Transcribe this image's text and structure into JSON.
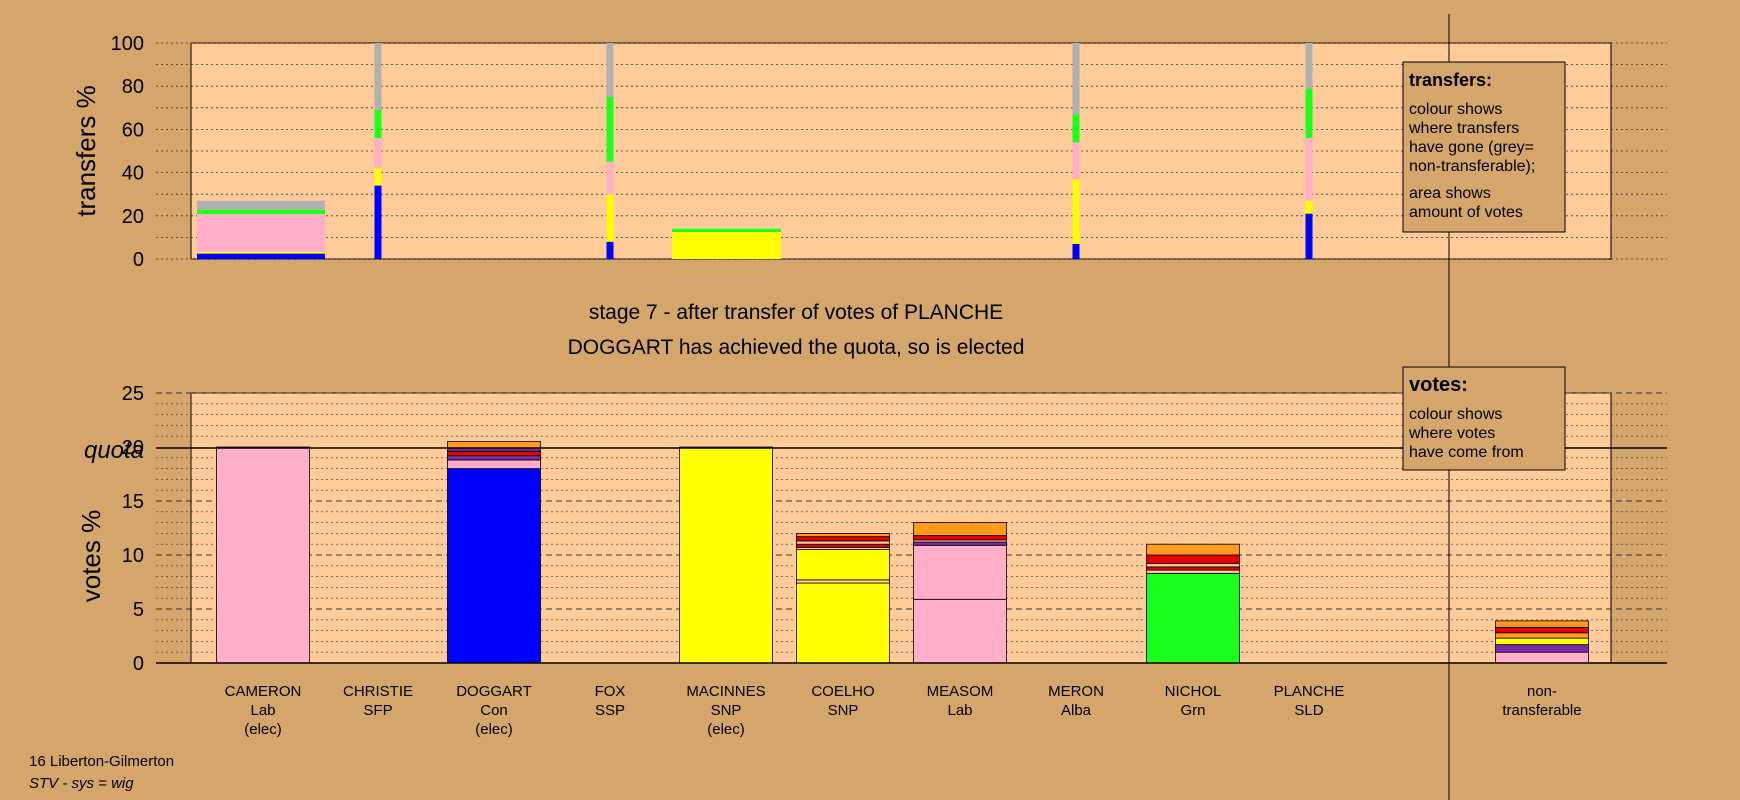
{
  "stage_text": "stage 7 - after transfer of votes of PLANCHE",
  "elected_text": "DOGGART has achieved the quota, so is elected",
  "footer": {
    "ward": "16 Liberton-Gilmerton",
    "system": "STV - sys = wig"
  },
  "legend_transfers": {
    "title": "transfers:",
    "lines1": [
      "colour shows",
      "where transfers",
      "have gone (grey=",
      "non-transferable);"
    ],
    "lines2": [
      "area shows",
      "amount of votes"
    ]
  },
  "legend_votes": {
    "title": "votes:",
    "lines": [
      "colour shows",
      "where votes",
      "have come from"
    ]
  },
  "colors": {
    "pink": "#ffb0c8",
    "blue": "#0000ff",
    "yellow": "#ffff00",
    "green": "#1cff1c",
    "grey": "#b0b0b0",
    "orange": "#ff9a1a",
    "red": "#e60000",
    "purple": "#7a2aa8",
    "tan": "#ffcc99",
    "bg": "#d4a66c"
  },
  "chart_data": [
    {
      "type": "bar",
      "ylabel": "transfers %",
      "ylim": [
        0,
        100
      ],
      "yticks": [
        0,
        20,
        40,
        60,
        80,
        100
      ],
      "bars": [
        {
          "candidate": "CAMERON",
          "width": "wide",
          "segments": [
            {
              "color": "blue",
              "value": 2.5
            },
            {
              "color": "yellow",
              "value": 0.8
            },
            {
              "color": "pink",
              "value": 17.5
            },
            {
              "color": "green",
              "value": 2
            },
            {
              "color": "grey",
              "value": 4.2
            }
          ]
        },
        {
          "candidate": "CHRISTIE",
          "width": "thin",
          "segments": [
            {
              "color": "blue",
              "value": 34
            },
            {
              "color": "yellow",
              "value": 8
            },
            {
              "color": "pink",
              "value": 14
            },
            {
              "color": "green",
              "value": 13
            },
            {
              "color": "grey",
              "value": 31
            }
          ]
        },
        {
          "candidate": "FOX",
          "width": "thin",
          "segments": [
            {
              "color": "blue",
              "value": 8
            },
            {
              "color": "yellow",
              "value": 22
            },
            {
              "color": "pink",
              "value": 15
            },
            {
              "color": "green",
              "value": 30
            },
            {
              "color": "grey",
              "value": 25
            }
          ]
        },
        {
          "candidate": "MACINNES",
          "width": "wide",
          "segments": [
            {
              "color": "yellow",
              "value": 12.5
            },
            {
              "color": "green",
              "value": 1.5
            }
          ]
        },
        {
          "candidate": "MERON",
          "width": "thin",
          "segments": [
            {
              "color": "blue",
              "value": 7
            },
            {
              "color": "yellow",
              "value": 30
            },
            {
              "color": "pink",
              "value": 17
            },
            {
              "color": "green",
              "value": 13
            },
            {
              "color": "grey",
              "value": 33
            }
          ]
        },
        {
          "candidate": "PLANCHE",
          "width": "thin",
          "segments": [
            {
              "color": "blue",
              "value": 21
            },
            {
              "color": "yellow",
              "value": 6
            },
            {
              "color": "pink",
              "value": 29
            },
            {
              "color": "green",
              "value": 23
            },
            {
              "color": "grey",
              "value": 21
            }
          ]
        }
      ]
    },
    {
      "type": "bar",
      "ylabel": "votes %",
      "ylim": [
        0,
        25
      ],
      "yticks": [
        0,
        5,
        10,
        15,
        20,
        25
      ],
      "quota": 20,
      "quota_label": "quota",
      "candidates": [
        {
          "name": "CAMERON",
          "party": "Lab",
          "status": "(elec)",
          "segments": [
            {
              "color": "pink",
              "value": 20
            }
          ]
        },
        {
          "name": "CHRISTIE",
          "party": "SFP",
          "status": "",
          "segments": []
        },
        {
          "name": "DOGGART",
          "party": "Con",
          "status": "(elec)",
          "segments": [
            {
              "color": "blue",
              "value": 18
            },
            {
              "color": "pink",
              "value": 0.8
            },
            {
              "color": "purple",
              "value": 0.4
            },
            {
              "color": "red",
              "value": 0.4
            },
            {
              "color": "purple",
              "value": 0.3
            },
            {
              "color": "orange",
              "value": 0.6
            }
          ]
        },
        {
          "name": "FOX",
          "party": "SSP",
          "status": "",
          "segments": []
        },
        {
          "name": "MACINNES",
          "party": "SNP",
          "status": "(elec)",
          "segments": [
            {
              "color": "yellow",
              "value": 20
            }
          ]
        },
        {
          "name": "COELHO",
          "party": "SNP",
          "status": "",
          "segments": [
            {
              "color": "yellow",
              "value": 7.4
            },
            {
              "color": "tan",
              "value": 0.3
            },
            {
              "color": "yellow",
              "value": 2.8
            },
            {
              "color": "tan",
              "value": 0.2
            },
            {
              "color": "red",
              "value": 0.3
            },
            {
              "color": "tan",
              "value": 0.3
            },
            {
              "color": "red",
              "value": 0.4
            },
            {
              "color": "orange",
              "value": 0.3
            }
          ]
        },
        {
          "name": "MEASOM",
          "party": "Lab",
          "status": "",
          "segments": [
            {
              "color": "pink",
              "value": 5.9
            },
            {
              "color": "pink",
              "value": 5
            },
            {
              "color": "purple",
              "value": 0.3
            },
            {
              "color": "tan",
              "value": 0.2
            },
            {
              "color": "red",
              "value": 0.4
            },
            {
              "color": "orange",
              "value": 1.2
            }
          ]
        },
        {
          "name": "MERON",
          "party": "Alba",
          "status": "",
          "segments": []
        },
        {
          "name": "NICHOL",
          "party": "Grn",
          "status": "",
          "segments": [
            {
              "color": "green",
              "value": 8.3
            },
            {
              "color": "tan",
              "value": 0.3
            },
            {
              "color": "red",
              "value": 0.3
            },
            {
              "color": "tan",
              "value": 0.3
            },
            {
              "color": "red",
              "value": 0.8
            },
            {
              "color": "orange",
              "value": 1
            }
          ]
        },
        {
          "name": "PLANCHE",
          "party": "SLD",
          "status": "",
          "segments": []
        }
      ],
      "nontransferable": {
        "label1": "non-",
        "label2": "transferable",
        "segments": [
          {
            "color": "pink",
            "value": 1
          },
          {
            "color": "purple",
            "value": 0.7
          },
          {
            "color": "yellow",
            "value": 0.6
          },
          {
            "color": "orange",
            "value": 0.5
          },
          {
            "color": "red",
            "value": 0.5
          },
          {
            "color": "orange",
            "value": 0.6
          }
        ]
      }
    }
  ]
}
